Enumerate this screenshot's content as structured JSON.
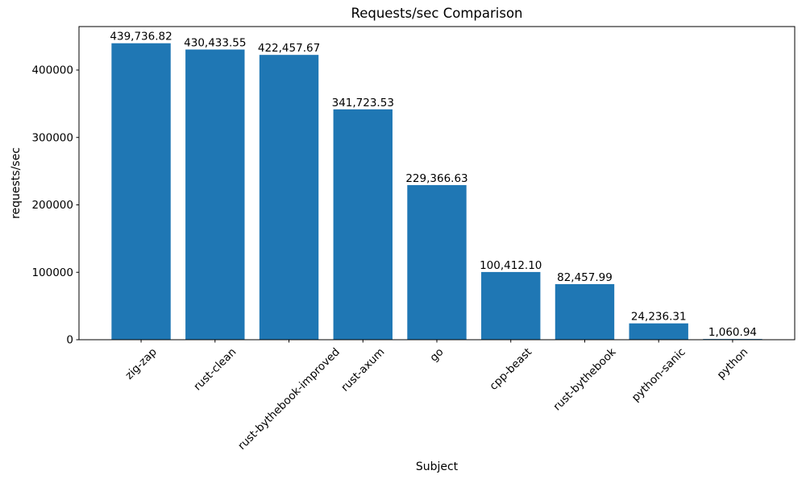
{
  "chart_data": {
    "type": "bar",
    "title": "Requests/sec Comparison",
    "xlabel": "Subject",
    "ylabel": "requests/sec",
    "categories": [
      "zig-zap",
      "rust-clean",
      "rust-bythebook-improved",
      "rust-axum",
      "go",
      "cpp-beast",
      "rust-bythebook",
      "python-sanic",
      "python"
    ],
    "values": [
      439736.82,
      430433.55,
      422457.67,
      341723.53,
      229366.63,
      100412.1,
      82457.99,
      24236.31,
      1060.94
    ],
    "value_labels": [
      "439,736.82",
      "430,433.55",
      "422,457.67",
      "341,723.53",
      "229,366.63",
      "100,412.10",
      "82,457.99",
      "24,236.31",
      "1,060.94"
    ],
    "yticks": [
      0,
      100000,
      200000,
      300000,
      400000
    ],
    "ylim": [
      0,
      464478
    ],
    "bar_color": "#1f77b4",
    "axis_color": "#000000",
    "background_color": "#ffffff",
    "grid": false,
    "legend_position": "none",
    "xtick_rotation_deg": 45
  }
}
